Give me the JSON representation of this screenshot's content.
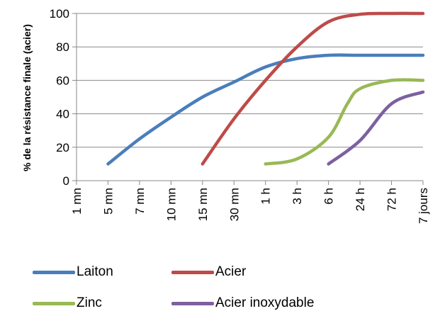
{
  "chart_data": {
    "type": "line",
    "ylabel": "% de la résistance finale (acier)",
    "xlabel": "",
    "ylim": [
      0,
      100
    ],
    "yticks": [
      0,
      20,
      40,
      60,
      80,
      100
    ],
    "categories": [
      "1 mn",
      "5 mn",
      "7 mn",
      "10 mn",
      "15 mn",
      "30 mn",
      "1 h",
      "3 h",
      "6 h",
      "24 h",
      "72 h",
      "7 jours"
    ],
    "grid": "horizontal",
    "legend_position": "bottom",
    "series": [
      {
        "name": "Laiton",
        "color": "#4a7ebb",
        "points": [
          [
            1,
            10
          ],
          [
            2,
            25
          ],
          [
            3,
            38
          ],
          [
            4,
            50
          ],
          [
            5,
            59
          ],
          [
            6,
            68
          ],
          [
            7,
            73
          ],
          [
            8,
            75
          ],
          [
            9,
            75
          ],
          [
            10,
            75
          ],
          [
            11,
            75
          ]
        ]
      },
      {
        "name": "Acier",
        "color": "#be4b48",
        "points": [
          [
            4,
            10
          ],
          [
            5,
            37
          ],
          [
            6,
            60
          ],
          [
            7,
            80
          ],
          [
            8,
            95
          ],
          [
            9,
            99.5
          ],
          [
            10,
            100
          ],
          [
            11,
            100
          ]
        ]
      },
      {
        "name": "Zinc",
        "color": "#98b954",
        "points": [
          [
            6,
            10
          ],
          [
            7,
            13
          ],
          [
            8,
            26
          ],
          [
            8.6,
            46
          ],
          [
            9,
            55
          ],
          [
            10,
            60
          ],
          [
            11,
            60
          ]
        ]
      },
      {
        "name": "Acier inoxydable",
        "color": "#7d60a0",
        "points": [
          [
            8,
            10
          ],
          [
            9,
            24
          ],
          [
            10,
            46
          ],
          [
            11,
            53
          ]
        ]
      }
    ]
  }
}
